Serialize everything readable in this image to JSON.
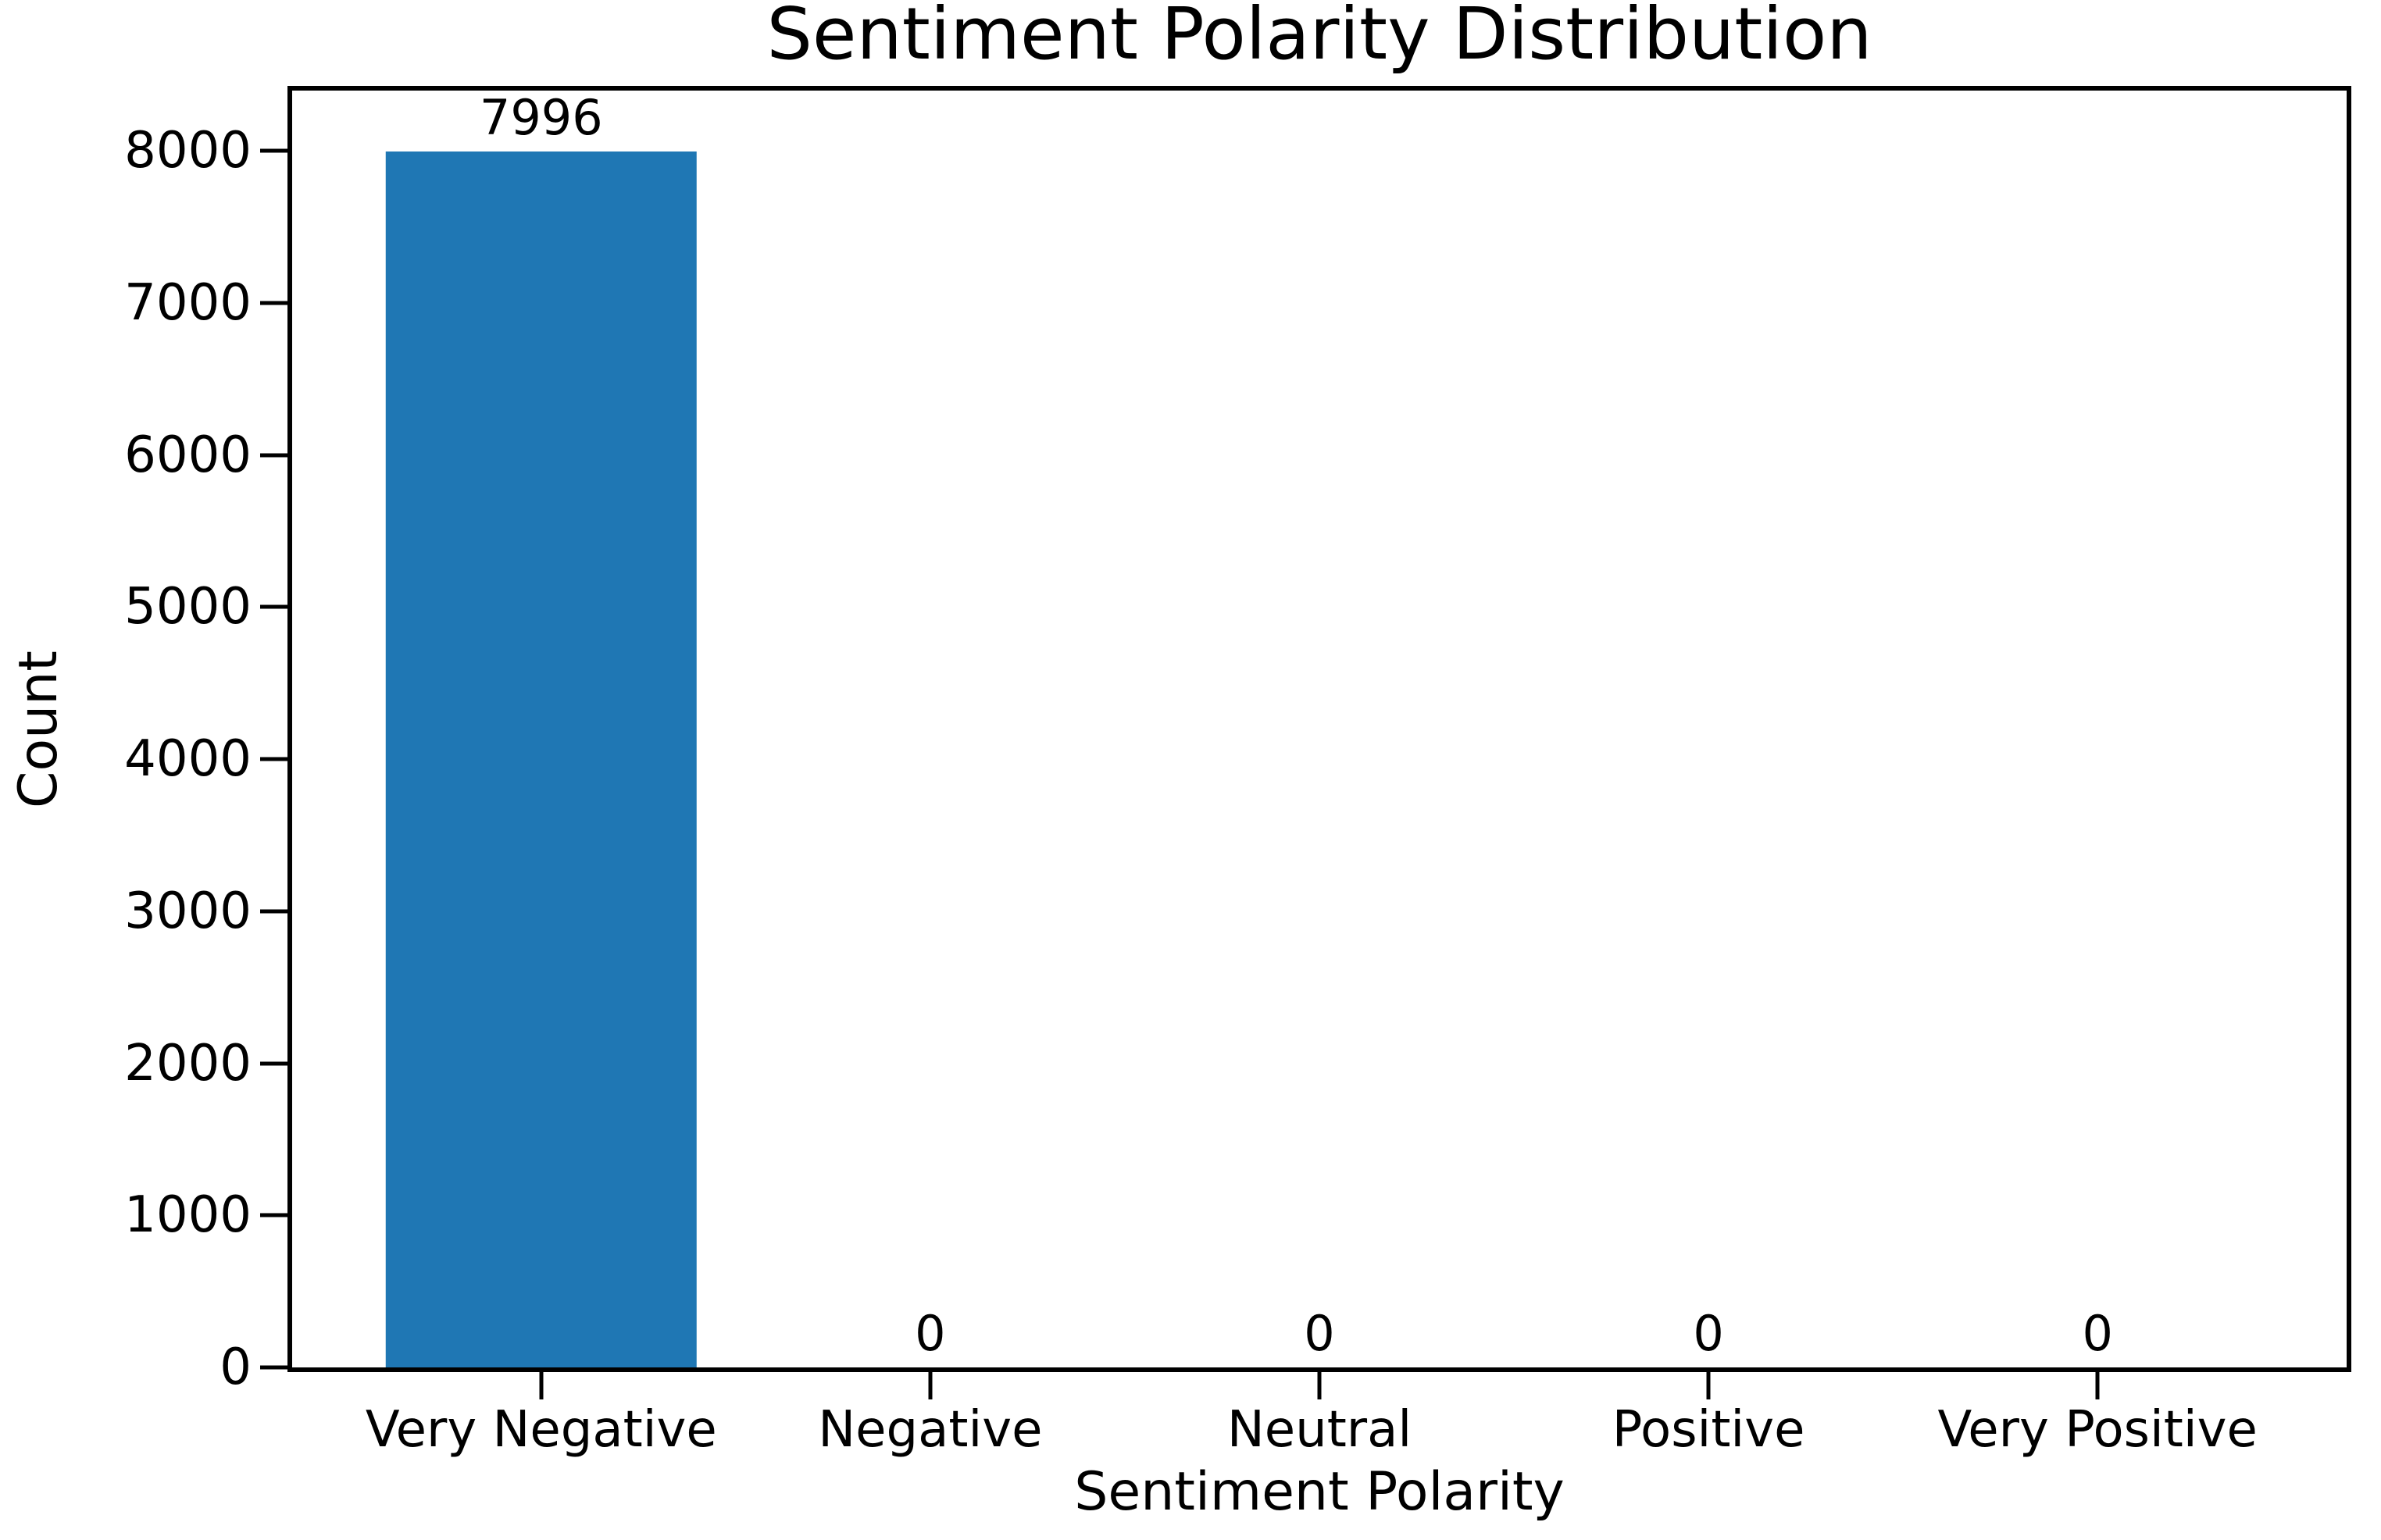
{
  "chart_data": {
    "type": "bar",
    "title": "Sentiment Polarity Distribution",
    "xlabel": "Sentiment Polarity",
    "ylabel": "Count",
    "categories": [
      "Very Negative",
      "Negative",
      "Neutral",
      "Positive",
      "Very Positive"
    ],
    "values": [
      7996,
      0,
      0,
      0,
      0
    ],
    "bar_labels": [
      "7996",
      "0",
      "0",
      "0",
      "0"
    ],
    "yticks": [
      0,
      1000,
      2000,
      3000,
      4000,
      5000,
      6000,
      7000,
      8000
    ],
    "ylim": [
      0,
      8396
    ],
    "bar_color": "#1f77b4",
    "axis_color": "#000000",
    "text_color": "#000000",
    "background_color": "#ffffff",
    "grid": false,
    "legend_position": "none",
    "bar_width_fraction": 0.8
  }
}
